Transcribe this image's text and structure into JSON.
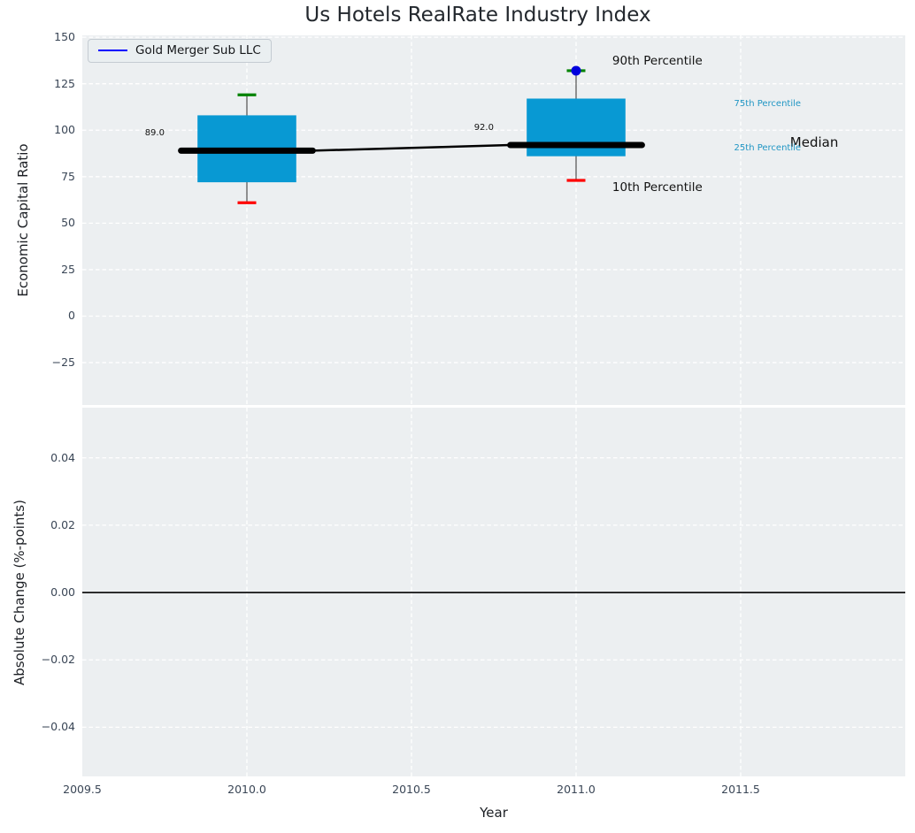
{
  "title": "Us Hotels RealRate Industry Index",
  "legend": {
    "label": "Gold Merger Sub LLC",
    "line_color": "#0000ff"
  },
  "colors": {
    "figure_bg": "#ffffff",
    "plot_bg": "#eceff1",
    "grid": "#ffffff",
    "box_fill": "#0899d3",
    "whisker": "#5a5a5a",
    "cap_high": "#008200",
    "cap_low": "#ff0000",
    "median": "#000000",
    "company_line": "#0000ff",
    "company_point": "#0000dd",
    "annotation_accent": "#2196c4",
    "annotation_text": "#111111",
    "tick_text": "#3a4656",
    "zero_line": "#000000"
  },
  "chart_data": [
    {
      "type": "box",
      "title": "Us Hotels RealRate Industry Index",
      "ylabel": "Economic Capital Ratio",
      "xlim": [
        2009.5,
        2012.0
      ],
      "ylim": [
        -47.8,
        151.0
      ],
      "yticks": [
        150,
        125,
        100,
        75,
        50,
        25,
        0,
        -25
      ],
      "ytick_labels": [
        "150",
        "125",
        "100",
        "75",
        "50",
        "25",
        "0",
        "−25"
      ],
      "xticks": [
        2010.0,
        2010.5,
        2011.0,
        2011.5
      ],
      "xtick_labels": null,
      "grid": true,
      "legend_position": "upper-left",
      "box_half_width": 0.15,
      "median_half_width": 0.2,
      "boxes": [
        {
          "x": 2010,
          "p10": 61,
          "p25": 72,
          "median": 89,
          "p75": 108,
          "p90": 119,
          "median_label": "89.0"
        },
        {
          "x": 2011,
          "p10": 73,
          "p25": 86,
          "median": 92,
          "p75": 117,
          "p90": 132,
          "median_label": "92.0"
        }
      ],
      "company_series": {
        "name": "Gold Merger Sub LLC",
        "points": [
          {
            "x": 2011,
            "y": 132
          }
        ]
      },
      "annotations": [
        {
          "text": "90th Percentile",
          "x": 2011.11,
          "y": 137.0,
          "color": "#111111",
          "size": 13.5,
          "anchor": "start"
        },
        {
          "text": "75th Percentile",
          "x": 2011.48,
          "y": 114.0,
          "color": "#2196c4",
          "size": 10,
          "anchor": "start"
        },
        {
          "text": "Median",
          "x": 2011.65,
          "y": 93.5,
          "color": "#111111",
          "size": 15,
          "anchor": "start"
        },
        {
          "text": "25th Percentile",
          "x": 2011.48,
          "y": 90.0,
          "color": "#2196c4",
          "size": 10,
          "anchor": "start"
        },
        {
          "text": "10th Percentile",
          "x": 2011.11,
          "y": 69.0,
          "color": "#111111",
          "size": 13.5,
          "anchor": "start"
        },
        {
          "text": "89.0",
          "x": 2009.72,
          "y": 98.0,
          "color": "#111111",
          "size": 10,
          "anchor": "middle"
        },
        {
          "text": "92.0",
          "x": 2010.72,
          "y": 101.0,
          "color": "#111111",
          "size": 10,
          "anchor": "middle"
        }
      ]
    },
    {
      "type": "line",
      "ylabel": "Absolute Change (%-points)",
      "xlabel": "Year",
      "xlim": [
        2009.5,
        2012.0
      ],
      "ylim": [
        -0.0546,
        0.0549
      ],
      "yticks": [
        0.04,
        0.02,
        0.0,
        -0.02,
        -0.04
      ],
      "ytick_labels": [
        "0.04",
        "0.02",
        "0.00",
        "−0.02",
        "−0.04"
      ],
      "xticks": [
        2009.5,
        2010.0,
        2010.5,
        2011.0,
        2011.5
      ],
      "xtick_labels": [
        "2009.5",
        "2010.0",
        "2010.5",
        "2011.0",
        "2011.5"
      ],
      "grid": true,
      "zero_line": 0.0
    }
  ]
}
